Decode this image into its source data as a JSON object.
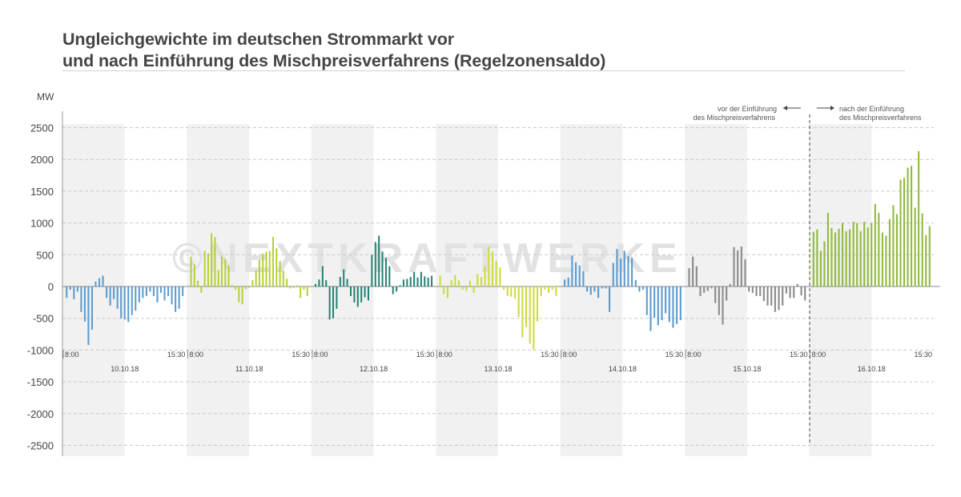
{
  "title": {
    "line1": "Ungleichgewichte im deutschen Strommarkt vor",
    "line2": "und nach Einführung des Mischpreisverfahrens (Regelzonensaldo)"
  },
  "watermark": "©NEXTKRAFTWERKE",
  "chart_data": {
    "type": "bar",
    "ylabel": "MW",
    "ylim": [
      -2500,
      2500
    ],
    "yticks": [
      2500,
      2000,
      1500,
      1000,
      500,
      0,
      -500,
      -1000,
      -1500,
      -2000,
      -2500
    ],
    "grid": "horizontal dashed",
    "annotations": {
      "before": [
        "vor der Einführung",
        "des Mischpreisverfahrens"
      ],
      "after": [
        "nach der Einführung",
        "des Mischpreisverfahrens"
      ]
    },
    "days": [
      {
        "date": "10.10.18",
        "start": "8:00",
        "end": "15:30",
        "color": "#5b9bd0",
        "values": [
          -180,
          -50,
          -200,
          -80,
          -400,
          -550,
          -920,
          -680,
          80,
          130,
          170,
          -180,
          -300,
          -200,
          -350,
          -500,
          -520,
          -560,
          -450,
          -380,
          -250,
          -180,
          -150,
          -80,
          -150,
          -250,
          -100,
          -220,
          -150,
          -280,
          -400,
          -350,
          -150
        ]
      },
      {
        "date": "11.10.18",
        "start": "8:00",
        "end": "15:30",
        "color": "#b6cd2e",
        "values": [
          470,
          350,
          90,
          -100,
          560,
          520,
          840,
          780,
          260,
          470,
          430,
          330,
          20,
          -50,
          -250,
          -280,
          -40,
          -20,
          100,
          250,
          420,
          520,
          550,
          560,
          780,
          600,
          400,
          250,
          120,
          -30,
          -20,
          20,
          -180,
          -50,
          -150
        ]
      },
      {
        "date": "12.10.18",
        "start": "8:00",
        "end": "15:30",
        "color": "#1f8271",
        "values": [
          40,
          110,
          320,
          100,
          -520,
          -500,
          -350,
          150,
          270,
          120,
          -150,
          -250,
          -320,
          -250,
          -170,
          -220,
          500,
          700,
          800,
          550,
          450,
          320,
          -120,
          -80,
          20,
          110,
          120,
          150,
          230,
          140,
          230,
          160,
          140,
          170
        ]
      },
      {
        "date": "13.10.18",
        "start": "8:00",
        "end": "15:30",
        "color": "#cedb3c",
        "values": [
          170,
          -120,
          -180,
          100,
          180,
          100,
          -50,
          -70,
          90,
          -100,
          200,
          150,
          320,
          630,
          550,
          400,
          300,
          -50,
          -150,
          -160,
          -190,
          -480,
          -800,
          -640,
          -900,
          -1000,
          -550,
          -150,
          -50,
          -100,
          -50,
          -150
        ]
      },
      {
        "date": "14.10.18",
        "start": "8:00",
        "end": "15:30",
        "color": "#5b9bd0",
        "values": [
          110,
          140,
          490,
          380,
          330,
          240,
          -80,
          -130,
          -80,
          -180,
          -30,
          -30,
          -400,
          370,
          590,
          440,
          560,
          480,
          450,
          100,
          -80,
          -50,
          -450,
          -700,
          -490,
          -610,
          -530,
          -420,
          -560,
          -650,
          -590,
          -530
        ]
      },
      {
        "date": "15.10.18",
        "start": "8:00",
        "end": "15:30",
        "color": "#8b8b8b",
        "values": [
          290,
          470,
          320,
          -150,
          -100,
          -70,
          -30,
          -260,
          -450,
          -600,
          -220,
          40,
          620,
          570,
          630,
          430,
          -80,
          -100,
          -150,
          -150,
          -230,
          -300,
          -300,
          -400,
          -370,
          -300,
          -110,
          -180,
          -180,
          40,
          -140,
          -220
        ]
      },
      {
        "date": "16.10.18",
        "start": "8:00",
        "end": "15:30",
        "color": "#8fb93a",
        "values": [
          860,
          900,
          560,
          710,
          1160,
          920,
          850,
          910,
          1000,
          870,
          900,
          1020,
          1000,
          870,
          1020,
          930,
          1000,
          1300,
          1160,
          850,
          800,
          1060,
          1280,
          1140,
          1680,
          1710,
          1870,
          1900,
          1240,
          2130,
          1150,
          810,
          950
        ]
      }
    ]
  }
}
